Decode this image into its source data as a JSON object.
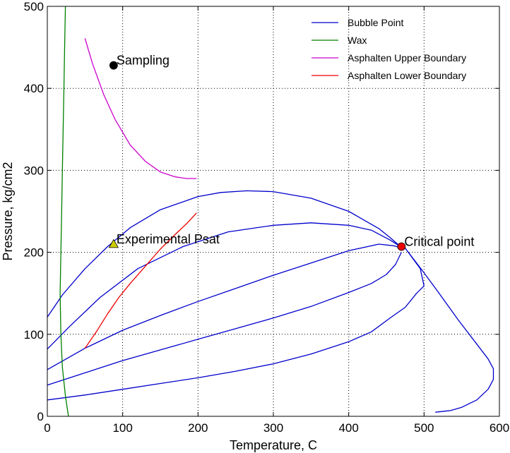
{
  "chart_data": {
    "type": "line",
    "xlabel": "Temperature, C",
    "ylabel": "Pressure, kg/cm2",
    "xlim": [
      0,
      600
    ],
    "ylim": [
      0,
      500
    ],
    "xticks": [
      0,
      100,
      200,
      300,
      400,
      500,
      600
    ],
    "yticks": [
      0,
      100,
      200,
      300,
      400,
      500
    ],
    "grid": true,
    "legend_position": "top-right",
    "series": [
      {
        "name": "Bubble Point",
        "color": "#0000cc",
        "lines": [
          [
            [
              0,
              121
            ],
            [
              20,
              148
            ],
            [
              50,
              180
            ],
            [
              80,
              207
            ],
            [
              110,
              230
            ],
            [
              150,
              252
            ],
            [
              200,
              268
            ],
            [
              230,
              273
            ],
            [
              265,
              275
            ],
            [
              300,
              274
            ],
            [
              350,
              266
            ],
            [
              400,
              250
            ],
            [
              440,
              229
            ],
            [
              455,
              218
            ],
            [
              470,
              206
            ]
          ],
          [
            [
              0,
              82
            ],
            [
              30,
              110
            ],
            [
              70,
              145
            ],
            [
              120,
              180
            ],
            [
              180,
              207
            ],
            [
              240,
              225
            ],
            [
              300,
              233
            ],
            [
              350,
              236
            ],
            [
              400,
              233
            ],
            [
              430,
              227
            ],
            [
              455,
              215
            ],
            [
              470,
              206
            ]
          ],
          [
            [
              0,
              57
            ],
            [
              50,
              83
            ],
            [
              100,
              105
            ],
            [
              150,
              123
            ],
            [
              200,
              140
            ],
            [
              250,
              156
            ],
            [
              300,
              172
            ],
            [
              350,
              187
            ],
            [
              400,
              202
            ],
            [
              440,
              210
            ],
            [
              460,
              208
            ],
            [
              470,
              205
            ]
          ],
          [
            [
              0,
              38
            ],
            [
              50,
              53
            ],
            [
              100,
              68
            ],
            [
              150,
              81
            ],
            [
              200,
              94
            ],
            [
              250,
              107
            ],
            [
              300,
              120
            ],
            [
              350,
              134
            ],
            [
              400,
              151
            ],
            [
              430,
              162
            ],
            [
              450,
              173
            ],
            [
              462,
              185
            ],
            [
              470,
              200
            ]
          ],
          [
            [
              0,
              20
            ],
            [
              50,
              26
            ],
            [
              100,
              33
            ],
            [
              150,
              40
            ],
            [
              200,
              47
            ],
            [
              250,
              55
            ],
            [
              300,
              64
            ],
            [
              350,
              76
            ],
            [
              400,
              91
            ],
            [
              430,
              103
            ],
            [
              455,
              120
            ],
            [
              475,
              133
            ],
            [
              490,
              150
            ],
            [
              500,
              159
            ],
            [
              495,
              180
            ],
            [
              475,
              205
            ],
            [
              500,
              175
            ],
            [
              520,
              150
            ],
            [
              545,
              118
            ],
            [
              570,
              88
            ],
            [
              585,
              70
            ],
            [
              592,
              58
            ],
            [
              592,
              45
            ],
            [
              585,
              33
            ],
            [
              570,
              20
            ],
            [
              550,
              11
            ],
            [
              535,
              7
            ],
            [
              515,
              5
            ]
          ]
        ]
      },
      {
        "name": "Wax",
        "color": "#008000",
        "lines": [
          [
            [
              24,
              500
            ],
            [
              23,
              450
            ],
            [
              22,
              400
            ],
            [
              21,
              350
            ],
            [
              20,
              300
            ],
            [
              19,
              250
            ],
            [
              18,
              200
            ],
            [
              17,
              150
            ],
            [
              18,
              100
            ],
            [
              20,
              60
            ],
            [
              24,
              25
            ],
            [
              28,
              0
            ]
          ]
        ]
      },
      {
        "name": "Asphalten Upper Boundary",
        "color": "#cc00cc",
        "lines": [
          [
            [
              50,
              461
            ],
            [
              60,
              430
            ],
            [
              75,
              392
            ],
            [
              90,
              362
            ],
            [
              110,
              331
            ],
            [
              130,
              311
            ],
            [
              150,
              298
            ],
            [
              170,
              292
            ],
            [
              185,
              290
            ],
            [
              198,
              290
            ]
          ]
        ]
      },
      {
        "name": "Asphalten Lower Boundary",
        "color": "#ee0000",
        "lines": [
          [
            [
              50,
              83
            ],
            [
              65,
              103
            ],
            [
              80,
              125
            ],
            [
              95,
              145
            ],
            [
              110,
              162
            ],
            [
              130,
              183
            ],
            [
              150,
              204
            ],
            [
              170,
              222
            ],
            [
              185,
              235
            ],
            [
              198,
              248
            ]
          ]
        ]
      }
    ],
    "annotations": [
      {
        "label": "Sampling",
        "x": 88,
        "y": 428,
        "marker": "circle",
        "color": "#000000"
      },
      {
        "label": "Experimental Psat",
        "x": 88,
        "y": 210,
        "marker": "triangle",
        "color": "#cccc00"
      },
      {
        "label": "Critical point",
        "x": 470,
        "y": 207,
        "marker": "circle",
        "color": "#ee0000"
      }
    ]
  }
}
